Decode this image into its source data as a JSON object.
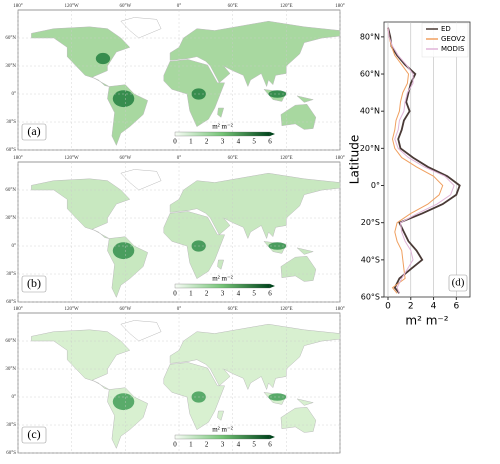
{
  "maps": {
    "lon_ticks": [
      "180°",
      "120°W",
      "60°W",
      "0°",
      "60°E",
      "120°E",
      "180°"
    ],
    "lat_ticks": [
      "60°N",
      "30°N",
      "0°",
      "30°S",
      "60°S"
    ],
    "colorbar_ticks": [
      0,
      1,
      2,
      3,
      4,
      5,
      6
    ],
    "colorbar_label": "m² m⁻²",
    "panels": [
      {
        "label": "(a)"
      },
      {
        "label": "(b)"
      },
      {
        "label": "(c)"
      }
    ]
  },
  "chart_data": {
    "type": "line",
    "panel_label": "(d)",
    "xlabel": "m² m⁻²",
    "ylabel": "Latitude",
    "y": [
      85,
      80,
      75,
      70,
      65,
      60,
      55,
      50,
      45,
      40,
      35,
      30,
      25,
      20,
      15,
      10,
      5,
      0,
      -5,
      -10,
      -15,
      -20,
      -25,
      -30,
      -35,
      -40,
      -45,
      -50,
      -55,
      -58
    ],
    "series": [
      {
        "name": "ED",
        "color": "#4a3a36",
        "values": [
          0,
          0.2,
          0.3,
          0.8,
          1.5,
          2.4,
          2.0,
          1.8,
          1.6,
          1.9,
          1.4,
          1.2,
          0.9,
          1.1,
          2.2,
          3.5,
          5.2,
          6.3,
          6.0,
          4.8,
          3.0,
          1.0,
          1.4,
          1.8,
          2.5,
          3.0,
          2.0,
          1.0,
          0.6,
          1.0
        ]
      },
      {
        "name": "GEOV2",
        "color": "#f0a060",
        "values": [
          0,
          0.1,
          0.3,
          0.6,
          1.2,
          1.8,
          1.7,
          1.3,
          1.1,
          1.0,
          0.7,
          0.6,
          0.4,
          0.6,
          1.2,
          2.5,
          4.0,
          4.8,
          4.5,
          3.5,
          2.0,
          0.8,
          0.6,
          0.8,
          1.2,
          1.3,
          1.4,
          1.5,
          0.4,
          0.8
        ]
      },
      {
        "name": "MODIS",
        "color": "#e0b4d8",
        "values": [
          0,
          0.1,
          0.4,
          0.9,
          1.6,
          2.2,
          2.2,
          1.7,
          1.5,
          1.4,
          1.0,
          0.9,
          0.6,
          0.9,
          1.8,
          3.2,
          5.0,
          5.8,
          5.5,
          4.3,
          2.6,
          1.1,
          1.2,
          1.5,
          2.0,
          2.2,
          1.7,
          1.2,
          0.8,
          1.0
        ]
      }
    ],
    "xlim": [
      -0.35,
      7.2
    ],
    "xticks": [
      0,
      2,
      4,
      6
    ],
    "ylim": [
      -60,
      88
    ],
    "yticks": [
      {
        "value": 80,
        "label": "80°N"
      },
      {
        "value": 60,
        "label": "60°N"
      },
      {
        "value": 40,
        "label": "40°N"
      },
      {
        "value": 20,
        "label": "20°N"
      },
      {
        "value": 0,
        "label": "0°"
      },
      {
        "value": -20,
        "label": "20°S"
      },
      {
        "value": -40,
        "label": "40°S"
      },
      {
        "value": -60,
        "label": "60°S"
      }
    ],
    "grid": true,
    "legend": "upper right"
  }
}
